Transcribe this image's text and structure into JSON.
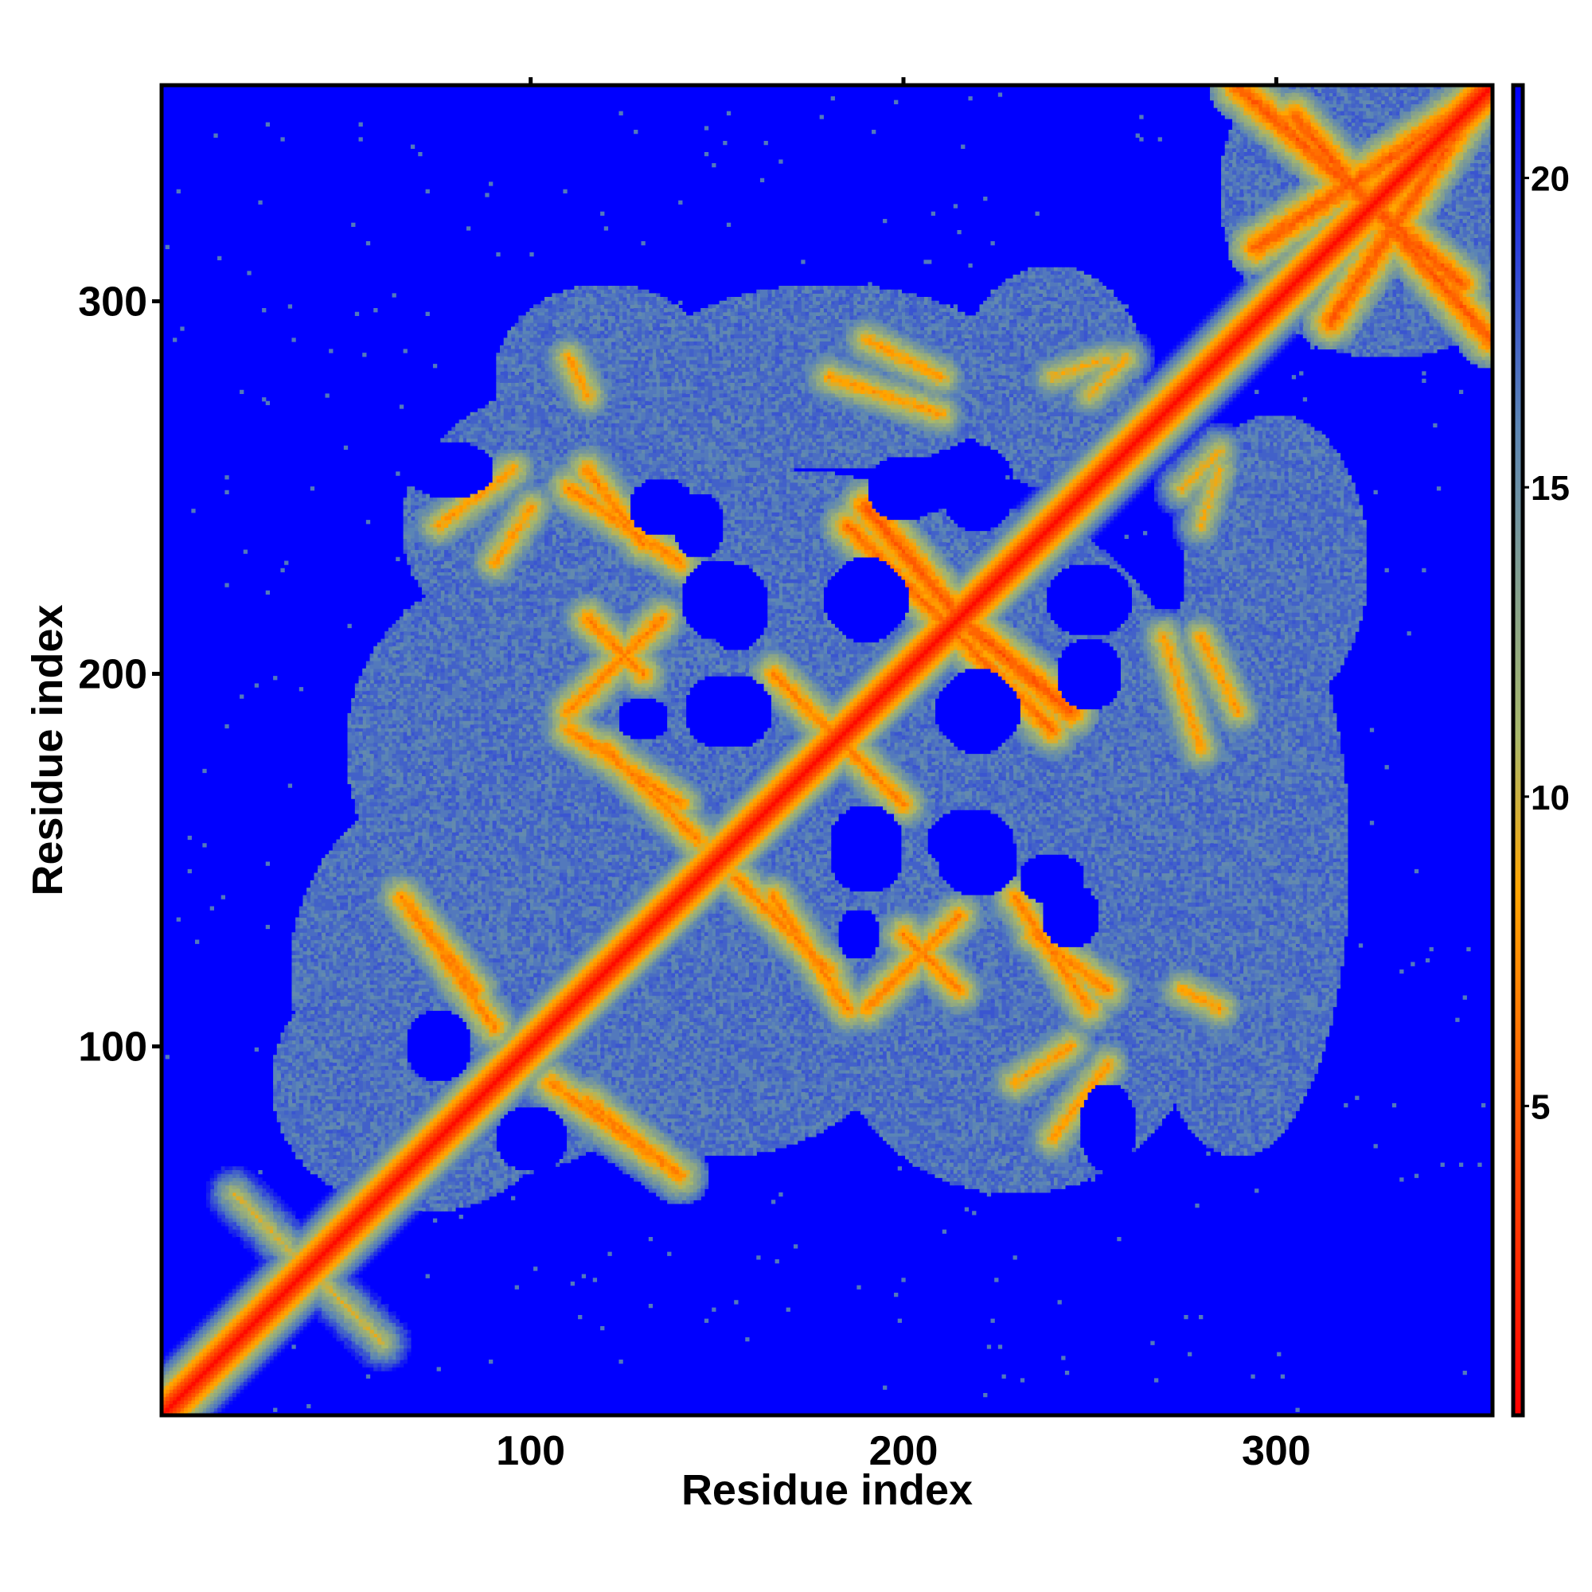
{
  "chart_data": {
    "type": "heatmap",
    "title": "",
    "xlabel": "Residue index",
    "ylabel": "Residue index",
    "n_residues": 358,
    "xlim": [
      1,
      358
    ],
    "ylim": [
      1,
      358
    ],
    "x_ticks": [
      100,
      200,
      300
    ],
    "y_ticks": [
      100,
      200,
      300
    ],
    "colorbar": {
      "ticks": [
        5,
        10,
        15,
        20
      ],
      "range": [
        0,
        21.5
      ],
      "stops": [
        {
          "value": 0,
          "color": "#ff0000"
        },
        {
          "value": 4,
          "color": "#ff4500"
        },
        {
          "value": 8.5,
          "color": "#ffa500"
        },
        {
          "value": 11,
          "color": "#a8b86a"
        },
        {
          "value": 16,
          "color": "#5b85b5"
        },
        {
          "value": 21.5,
          "color": "#0000ff"
        }
      ]
    },
    "background_color": "#0000ff",
    "cap_value": 21.5,
    "diagonal_contacts": [
      {
        "x": 1,
        "y": 1
      },
      {
        "x": 358,
        "y": 358
      }
    ],
    "contact_bands": [
      {
        "from": [
          20,
          60
        ],
        "to": [
          60,
          20
        ],
        "min": 9
      },
      {
        "from": [
          65,
          140
        ],
        "to": [
          90,
          105
        ],
        "min": 6
      },
      {
        "from": [
          115,
          85
        ],
        "to": [
          140,
          65
        ],
        "min": 6
      },
      {
        "from": [
          75,
          240
        ],
        "to": [
          95,
          255
        ],
        "min": 7
      },
      {
        "from": [
          110,
          190
        ],
        "to": [
          135,
          215
        ],
        "min": 6
      },
      {
        "from": [
          115,
          255
        ],
        "to": [
          130,
          235
        ],
        "min": 6
      },
      {
        "from": [
          120,
          180
        ],
        "to": [
          145,
          155
        ],
        "min": 6
      },
      {
        "from": [
          165,
          140
        ],
        "to": [
          185,
          110
        ],
        "min": 6
      },
      {
        "from": [
          165,
          200
        ],
        "to": [
          195,
          170
        ],
        "min": 6
      },
      {
        "from": [
          185,
          240
        ],
        "to": [
          215,
          210
        ],
        "min": 5
      },
      {
        "from": [
          200,
          130
        ],
        "to": [
          215,
          115
        ],
        "min": 6
      },
      {
        "from": [
          215,
          215
        ],
        "to": [
          245,
          190
        ],
        "min": 4
      },
      {
        "from": [
          230,
          140
        ],
        "to": [
          250,
          110
        ],
        "min": 6
      },
      {
        "from": [
          230,
          90
        ],
        "to": [
          245,
          100
        ],
        "min": 7
      },
      {
        "from": [
          280,
          210
        ],
        "to": [
          290,
          190
        ],
        "min": 7
      },
      {
        "from": [
          275,
          250
        ],
        "to": [
          285,
          260
        ],
        "min": 8
      },
      {
        "from": [
          180,
          280
        ],
        "to": [
          210,
          270
        ],
        "min": 7
      },
      {
        "from": [
          240,
          280
        ],
        "to": [
          255,
          285
        ],
        "min": 8
      },
      {
        "from": [
          110,
          285
        ],
        "to": [
          115,
          275
        ],
        "min": 7
      },
      {
        "from": [
          295,
          315
        ],
        "to": [
          355,
          355
        ],
        "min": 4
      },
      {
        "from": [
          305,
          350
        ],
        "to": [
          358,
          290
        ],
        "min": 4
      }
    ],
    "medium_regions": [
      {
        "cx": 90,
        "cy": 120,
        "rx": 55,
        "ry": 55
      },
      {
        "cx": 150,
        "cy": 130,
        "rx": 60,
        "ry": 60
      },
      {
        "cx": 170,
        "cy": 200,
        "rx": 60,
        "ry": 55
      },
      {
        "cx": 220,
        "cy": 190,
        "rx": 55,
        "ry": 55
      },
      {
        "cx": 230,
        "cy": 110,
        "rx": 50,
        "ry": 50
      },
      {
        "cx": 120,
        "cy": 240,
        "rx": 55,
        "ry": 40
      },
      {
        "cx": 100,
        "cy": 180,
        "rx": 50,
        "ry": 50
      },
      {
        "cx": 290,
        "cy": 150,
        "rx": 30,
        "ry": 80
      },
      {
        "cx": 180,
        "cy": 280,
        "rx": 50,
        "ry": 25
      },
      {
        "cx": 240,
        "cy": 280,
        "rx": 25,
        "ry": 30
      },
      {
        "cx": 120,
        "cy": 280,
        "rx": 30,
        "ry": 25
      },
      {
        "cx": 300,
        "cy": 230,
        "rx": 25,
        "ry": 40
      },
      {
        "cx": 330,
        "cy": 330,
        "rx": 45,
        "ry": 45
      },
      {
        "cx": 70,
        "cy": 90,
        "rx": 40,
        "ry": 35
      },
      {
        "cx": 270,
        "cy": 130,
        "rx": 25,
        "ry": 30
      }
    ],
    "holes": [
      {
        "cx": 150,
        "cy": 220,
        "rx": 10,
        "ry": 11
      },
      {
        "cx": 190,
        "cy": 220,
        "rx": 12,
        "ry": 10
      },
      {
        "cx": 150,
        "cy": 190,
        "rx": 9,
        "ry": 10
      },
      {
        "cx": 130,
        "cy": 188,
        "rx": 7,
        "ry": 6
      },
      {
        "cx": 220,
        "cy": 190,
        "rx": 12,
        "ry": 10
      },
      {
        "cx": 190,
        "cy": 155,
        "rx": 10,
        "ry": 10
      },
      {
        "cx": 218,
        "cy": 155,
        "rx": 12,
        "ry": 9
      },
      {
        "cx": 250,
        "cy": 220,
        "rx": 12,
        "ry": 10
      },
      {
        "cx": 240,
        "cy": 145,
        "rx": 9,
        "ry": 7
      },
      {
        "cx": 75,
        "cy": 100,
        "rx": 8,
        "ry": 6
      },
      {
        "cx": 100,
        "cy": 75,
        "rx": 10,
        "ry": 9
      },
      {
        "cx": 78,
        "cy": 255,
        "rx": 12,
        "ry": 8
      },
      {
        "cx": 135,
        "cy": 245,
        "rx": 9,
        "ry": 8
      },
      {
        "cx": 200,
        "cy": 250,
        "rx": 10,
        "ry": 9
      }
    ]
  }
}
